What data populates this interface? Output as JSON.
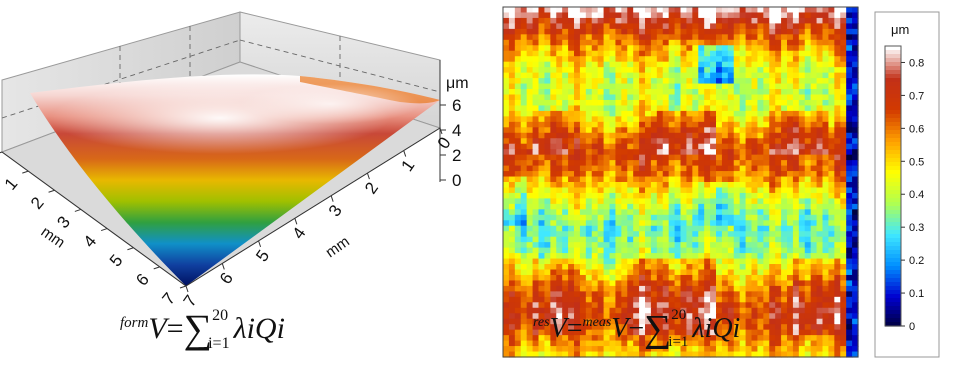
{
  "chart_data": [
    {
      "type": "surface-3d",
      "zlabel": "μm",
      "zticks": [
        "0",
        "2",
        "4",
        "6"
      ],
      "xlabel": "mm",
      "xticks": [
        "0",
        "1",
        "2",
        "3",
        "4",
        "5",
        "6",
        "7"
      ],
      "ylabel": "mm",
      "yticks": [
        "0",
        "1",
        "2",
        "3",
        "4",
        "5",
        "6",
        "7"
      ],
      "xlim": [
        0,
        7
      ],
      "ylim": [
        0,
        7
      ],
      "zlim": [
        0,
        6.5
      ],
      "formula": {
        "sup": "form",
        "lhs": "V",
        "eq": "=",
        "sum": "∑",
        "upper": "20",
        "lower": "i=1",
        "term": "λiQi"
      }
    },
    {
      "type": "heatmap",
      "colorbar_label": "μm",
      "colorbar_ticks": [
        "0",
        "0.1",
        "0.2",
        "0.3",
        "0.4",
        "0.5",
        "0.6",
        "0.7",
        "0.8"
      ],
      "zlim": [
        0,
        0.85
      ],
      "colormap": [
        "#00003a",
        "#0000d0",
        "#0090ff",
        "#40e8ff",
        "#b0ff50",
        "#ffff00",
        "#ffa000",
        "#d23a00",
        "#c23018",
        "#ffffff"
      ],
      "row_profile": [
        0.84,
        0.68,
        0.55,
        0.45,
        0.42,
        0.45,
        0.58,
        0.68,
        0.62,
        0.48,
        0.38,
        0.32,
        0.38,
        0.5,
        0.62,
        0.68,
        0.62,
        0.52
      ],
      "formula": {
        "sup1": "res",
        "lhs": "V",
        "eq": "=",
        "sup2": "meas",
        "v2": "V",
        "minus": "−",
        "sum": "∑",
        "upper": "20",
        "lower": "i=1",
        "term": "λiQi"
      }
    }
  ]
}
